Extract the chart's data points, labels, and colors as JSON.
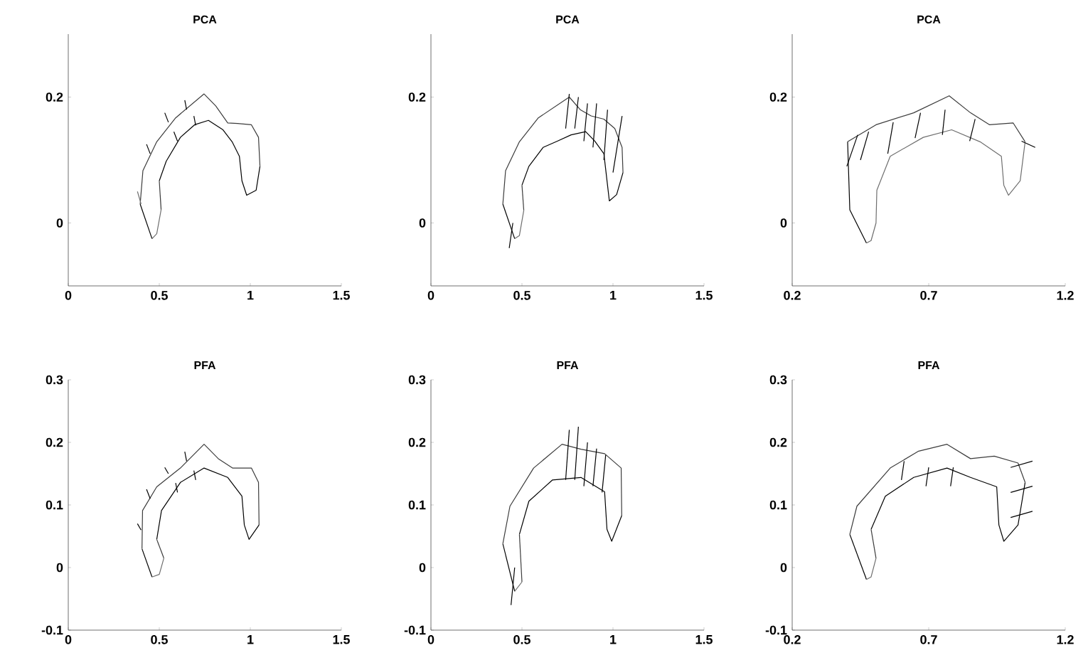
{
  "chart_data": [
    {
      "type": "line",
      "title": "PCA",
      "xlim": [
        0,
        1.5
      ],
      "ylim": [
        -0.1,
        0.3
      ],
      "xticks": [
        0,
        0.5,
        1,
        1.5
      ],
      "yticks": [
        0,
        0.2
      ],
      "series": [
        {
          "color": "#000000",
          "x": [
            0.395,
            0.46
          ],
          "values": [
            0.03,
            -0.025
          ]
        },
        {
          "color": "#3c3c3c",
          "x": [
            0.395,
            0.41,
            0.486,
            0.59,
            0.746,
            0.81,
            0.876,
            0.93,
            1.006,
            1.045,
            1.053
          ],
          "values": [
            0.03,
            0.083,
            0.129,
            0.167,
            0.205,
            0.186,
            0.159,
            0.158,
            0.156,
            0.136,
            0.09
          ]
        },
        {
          "color": "#000000",
          "x": [
            0.5,
            0.538,
            0.616,
            0.694,
            0.77,
            0.85,
            0.9,
            0.94,
            0.954,
            0.98,
            1.032,
            1.053
          ],
          "values": [
            0.067,
            0.098,
            0.136,
            0.156,
            0.163,
            0.148,
            0.129,
            0.106,
            0.067,
            0.044,
            0.052,
            0.09
          ]
        },
        {
          "color": "#3c3c3c",
          "x": [
            0.5,
            0.51
          ],
          "values": [
            0.067,
            0.021
          ]
        },
        {
          "color": "#6e6e6e",
          "x": [
            0.46,
            0.486,
            0.51
          ],
          "values": [
            -0.025,
            -0.017,
            0.021
          ]
        },
        {
          "color": "#6e6e6e",
          "x": [
            0.38,
            0.4
          ],
          "values": [
            0.05,
            0.03
          ]
        },
        {
          "color": "#000000",
          "x": [
            0.43,
            0.45
          ],
          "values": [
            0.125,
            0.11
          ]
        },
        {
          "color": "#000000",
          "x": [
            0.53,
            0.55
          ],
          "values": [
            0.175,
            0.16
          ]
        },
        {
          "color": "#000000",
          "x": [
            0.64,
            0.65
          ],
          "values": [
            0.195,
            0.18
          ]
        },
        {
          "color": "#000000",
          "x": [
            0.58,
            0.6
          ],
          "values": [
            0.145,
            0.13
          ]
        },
        {
          "color": "#000000",
          "x": [
            0.69,
            0.7
          ],
          "values": [
            0.17,
            0.155
          ]
        }
      ]
    },
    {
      "type": "line",
      "title": "PCA",
      "xlim": [
        0,
        1.5
      ],
      "ylim": [
        -0.1,
        0.3
      ],
      "xticks": [
        0,
        0.5,
        1,
        1.5
      ],
      "yticks": [
        0,
        0.2
      ],
      "series": [
        {
          "color": "#000000",
          "x": [
            0.395,
            0.46
          ],
          "values": [
            0.03,
            -0.025
          ]
        },
        {
          "color": "#3c3c3c",
          "x": [
            0.395,
            0.41,
            0.486,
            0.59,
            0.76,
            0.82,
            0.88,
            0.95,
            1.01,
            1.05,
            1.055
          ],
          "values": [
            0.03,
            0.083,
            0.129,
            0.167,
            0.2,
            0.18,
            0.17,
            0.165,
            0.15,
            0.12,
            0.08
          ]
        },
        {
          "color": "#000000",
          "x": [
            0.5,
            0.538,
            0.616,
            0.694,
            0.77,
            0.85,
            0.9,
            0.95,
            0.97,
            0.98,
            1.02,
            1.055
          ],
          "values": [
            0.06,
            0.09,
            0.12,
            0.13,
            0.14,
            0.145,
            0.13,
            0.11,
            0.06,
            0.035,
            0.045,
            0.08
          ]
        },
        {
          "color": "#3c3c3c",
          "x": [
            0.5,
            0.51
          ],
          "values": [
            0.06,
            0.02
          ]
        },
        {
          "color": "#6e6e6e",
          "x": [
            0.46,
            0.486,
            0.51
          ],
          "values": [
            -0.025,
            -0.02,
            0.02
          ]
        },
        {
          "color": "#000000",
          "x": [
            0.74,
            0.76
          ],
          "values": [
            0.15,
            0.205
          ]
        },
        {
          "color": "#000000",
          "x": [
            0.79,
            0.81
          ],
          "values": [
            0.15,
            0.2
          ]
        },
        {
          "color": "#000000",
          "x": [
            0.84,
            0.86
          ],
          "values": [
            0.13,
            0.19
          ]
        },
        {
          "color": "#000000",
          "x": [
            0.89,
            0.91
          ],
          "values": [
            0.12,
            0.19
          ]
        },
        {
          "color": "#000000",
          "x": [
            0.95,
            0.97
          ],
          "values": [
            0.1,
            0.18
          ]
        },
        {
          "color": "#000000",
          "x": [
            1.0,
            1.05
          ],
          "values": [
            0.08,
            0.17
          ]
        },
        {
          "color": "#000000",
          "x": [
            0.43,
            0.45
          ],
          "values": [
            -0.04,
            0.0
          ]
        }
      ]
    },
    {
      "type": "line",
      "title": "PCA",
      "xlim": [
        0.2,
        1.2
      ],
      "ylim": [
        -0.1,
        0.3
      ],
      "xticks": [
        0.2,
        0.7,
        1.2
      ],
      "yticks": [
        0,
        0.2
      ],
      "series": [
        {
          "color": "#000000",
          "x": [
            0.403,
            0.411,
            0.472
          ],
          "values": [
            0.129,
            0.021,
            -0.032
          ]
        },
        {
          "color": "#3c3c3c",
          "x": [
            0.403,
            0.507,
            0.645,
            0.775,
            0.853,
            0.923,
            1.009,
            1.053
          ],
          "values": [
            0.129,
            0.156,
            0.175,
            0.202,
            0.175,
            0.156,
            0.159,
            0.129
          ]
        },
        {
          "color": "#6e6e6e",
          "x": [
            0.472,
            0.489,
            0.507,
            0.51,
            0.559,
            0.68,
            0.784,
            0.888,
            0.966,
            0.975,
            0.992,
            1.035,
            1.053
          ],
          "values": [
            -0.032,
            -0.028,
            0.0,
            0.052,
            0.106,
            0.136,
            0.148,
            0.129,
            0.106,
            0.06,
            0.044,
            0.067,
            0.129
          ]
        },
        {
          "color": "#000000",
          "x": [
            0.4,
            0.44
          ],
          "values": [
            0.09,
            0.14
          ]
        },
        {
          "color": "#000000",
          "x": [
            0.45,
            0.48
          ],
          "values": [
            0.1,
            0.145
          ]
        },
        {
          "color": "#000000",
          "x": [
            0.55,
            0.57
          ],
          "values": [
            0.11,
            0.16
          ]
        },
        {
          "color": "#000000",
          "x": [
            0.65,
            0.67
          ],
          "values": [
            0.135,
            0.175
          ]
        },
        {
          "color": "#000000",
          "x": [
            0.75,
            0.76
          ],
          "values": [
            0.14,
            0.18
          ]
        },
        {
          "color": "#000000",
          "x": [
            0.85,
            0.87
          ],
          "values": [
            0.13,
            0.165
          ]
        },
        {
          "color": "#000000",
          "x": [
            1.04,
            1.09
          ],
          "values": [
            0.13,
            0.12
          ]
        }
      ]
    },
    {
      "type": "line",
      "title": "PFA",
      "xlim": [
        0,
        1.5
      ],
      "ylim": [
        -0.1,
        0.3
      ],
      "xticks": [
        0,
        0.5,
        1,
        1.5
      ],
      "yticks": [
        -0.1,
        0,
        0.1,
        0.2,
        0.3
      ],
      "series": [
        {
          "color": "#000000",
          "x": [
            0.405,
            0.46
          ],
          "values": [
            0.03,
            -0.015
          ]
        },
        {
          "color": "#3c3c3c",
          "x": [
            0.405,
            0.408,
            0.486,
            0.616,
            0.746,
            0.824,
            0.902,
            1.006,
            1.045,
            1.048
          ],
          "values": [
            0.03,
            0.091,
            0.129,
            0.159,
            0.197,
            0.174,
            0.159,
            0.159,
            0.136,
            0.068
          ]
        },
        {
          "color": "#000000",
          "x": [
            0.486,
            0.512,
            0.616,
            0.746,
            0.876,
            0.954,
            0.967,
            0.993,
            1.048
          ],
          "values": [
            0.045,
            0.091,
            0.136,
            0.159,
            0.144,
            0.114,
            0.068,
            0.045,
            0.068
          ]
        },
        {
          "color": "#3c3c3c",
          "x": [
            0.486,
            0.525
          ],
          "values": [
            0.045,
            0.015
          ]
        },
        {
          "color": "#6e6e6e",
          "x": [
            0.46,
            0.5,
            0.525
          ],
          "values": [
            -0.015,
            -0.011,
            0.015
          ]
        },
        {
          "color": "#000000",
          "x": [
            0.38,
            0.4
          ],
          "values": [
            0.07,
            0.06
          ]
        },
        {
          "color": "#000000",
          "x": [
            0.43,
            0.45
          ],
          "values": [
            0.125,
            0.11
          ]
        },
        {
          "color": "#000000",
          "x": [
            0.53,
            0.55
          ],
          "values": [
            0.16,
            0.15
          ]
        },
        {
          "color": "#000000",
          "x": [
            0.64,
            0.65
          ],
          "values": [
            0.185,
            0.17
          ]
        },
        {
          "color": "#000000",
          "x": [
            0.59,
            0.6
          ],
          "values": [
            0.135,
            0.12
          ]
        },
        {
          "color": "#000000",
          "x": [
            0.69,
            0.7
          ],
          "values": [
            0.155,
            0.14
          ]
        }
      ]
    },
    {
      "type": "line",
      "title": "PFA",
      "xlim": [
        0,
        1.5
      ],
      "ylim": [
        -0.1,
        0.3
      ],
      "xticks": [
        0,
        0.5,
        1,
        1.5
      ],
      "yticks": [
        -0.1,
        0,
        0.1,
        0.2,
        0.3
      ],
      "series": [
        {
          "color": "#000000",
          "x": [
            0.395,
            0.46
          ],
          "values": [
            0.038,
            -0.038
          ]
        },
        {
          "color": "#3c3c3c",
          "x": [
            0.395,
            0.434,
            0.564,
            0.72,
            0.824,
            0.954,
            1.045,
            1.048
          ],
          "values": [
            0.038,
            0.098,
            0.159,
            0.197,
            0.189,
            0.182,
            0.159,
            0.083
          ]
        },
        {
          "color": "#000000",
          "x": [
            0.486,
            0.538,
            0.668,
            0.824,
            0.954,
            0.967,
            0.993,
            1.048
          ],
          "values": [
            0.053,
            0.106,
            0.14,
            0.144,
            0.121,
            0.061,
            0.042,
            0.083
          ]
        },
        {
          "color": "#3c3c3c",
          "x": [
            0.486,
            0.5
          ],
          "values": [
            0.053,
            -0.023
          ]
        },
        {
          "color": "#6e6e6e",
          "x": [
            0.46,
            0.5
          ],
          "values": [
            -0.038,
            -0.023
          ]
        },
        {
          "color": "#000000",
          "x": [
            0.74,
            0.76
          ],
          "values": [
            0.14,
            0.22
          ]
        },
        {
          "color": "#000000",
          "x": [
            0.79,
            0.81
          ],
          "values": [
            0.14,
            0.225
          ]
        },
        {
          "color": "#000000",
          "x": [
            0.84,
            0.86
          ],
          "values": [
            0.13,
            0.2
          ]
        },
        {
          "color": "#000000",
          "x": [
            0.89,
            0.91
          ],
          "values": [
            0.13,
            0.19
          ]
        },
        {
          "color": "#000000",
          "x": [
            0.94,
            0.96
          ],
          "values": [
            0.12,
            0.18
          ]
        },
        {
          "color": "#000000",
          "x": [
            0.44,
            0.46
          ],
          "values": [
            -0.06,
            0.0
          ]
        }
      ]
    },
    {
      "type": "line",
      "title": "PFA",
      "xlim": [
        0.2,
        1.2
      ],
      "ylim": [
        -0.1,
        0.3
      ],
      "xticks": [
        0.2,
        0.7,
        1.2
      ],
      "yticks": [
        -0.1,
        0,
        0.1,
        0.2,
        0.3
      ],
      "series": [
        {
          "color": "#000000",
          "x": [
            0.411,
            0.472
          ],
          "values": [
            0.053,
            -0.019
          ]
        },
        {
          "color": "#3c3c3c",
          "x": [
            0.411,
            0.437,
            0.559,
            0.663,
            0.767,
            0.853,
            0.94,
            1.027,
            1.053
          ],
          "values": [
            0.053,
            0.098,
            0.159,
            0.186,
            0.197,
            0.174,
            0.178,
            0.167,
            0.136
          ]
        },
        {
          "color": "#000000",
          "x": [
            0.489,
            0.541,
            0.645,
            0.767,
            0.853,
            0.949,
            0.957,
            0.975,
            1.027,
            1.053
          ],
          "values": [
            0.061,
            0.114,
            0.144,
            0.159,
            0.144,
            0.129,
            0.068,
            0.042,
            0.068,
            0.136
          ]
        },
        {
          "color": "#3c3c3c",
          "x": [
            0.489,
            0.507
          ],
          "values": [
            0.061,
            0.015
          ]
        },
        {
          "color": "#6e6e6e",
          "x": [
            0.472,
            0.489,
            0.507
          ],
          "values": [
            -0.019,
            -0.015,
            0.015
          ]
        },
        {
          "color": "#000000",
          "x": [
            0.6,
            0.61
          ],
          "values": [
            0.14,
            0.17
          ]
        },
        {
          "color": "#000000",
          "x": [
            0.69,
            0.7
          ],
          "values": [
            0.13,
            0.16
          ]
        },
        {
          "color": "#000000",
          "x": [
            0.78,
            0.79
          ],
          "values": [
            0.13,
            0.16
          ]
        },
        {
          "color": "#000000",
          "x": [
            1.0,
            1.08
          ],
          "values": [
            0.16,
            0.17
          ]
        },
        {
          "color": "#000000",
          "x": [
            1.0,
            1.08
          ],
          "values": [
            0.12,
            0.13
          ]
        },
        {
          "color": "#000000",
          "x": [
            1.0,
            1.08
          ],
          "values": [
            0.08,
            0.09
          ]
        }
      ]
    }
  ]
}
